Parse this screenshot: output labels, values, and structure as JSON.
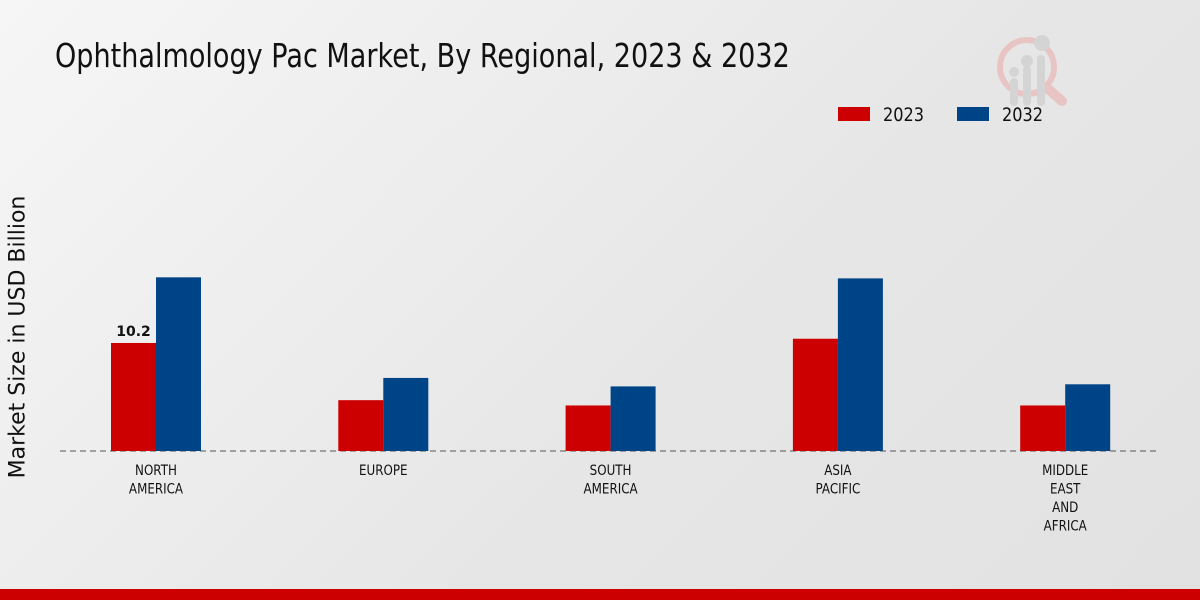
{
  "chart_data": {
    "type": "bar",
    "title": "Ophthalmology Pac Market, By Regional, 2023 & 2032",
    "xlabel": "",
    "ylabel": "Market Size in USD Billion",
    "categories": [
      [
        "NORTH",
        "AMERICA"
      ],
      [
        "EUROPE"
      ],
      [
        "SOUTH",
        "AMERICA"
      ],
      [
        "ASIA",
        "PACIFIC"
      ],
      [
        "MIDDLE",
        "EAST",
        "AND",
        "AFRICA"
      ]
    ],
    "series": [
      {
        "name": "2023",
        "color": "#cc0000",
        "values": [
          10.2,
          4.8,
          4.3,
          10.6,
          4.3
        ]
      },
      {
        "name": "2032",
        "color": "#004488",
        "values": [
          16.4,
          6.9,
          6.1,
          16.3,
          6.3
        ]
      }
    ],
    "data_labels": [
      {
        "series": 0,
        "index": 0,
        "text": "10.2"
      }
    ],
    "ylim": [
      0,
      20
    ],
    "grid": false,
    "legend": "top-right"
  }
}
